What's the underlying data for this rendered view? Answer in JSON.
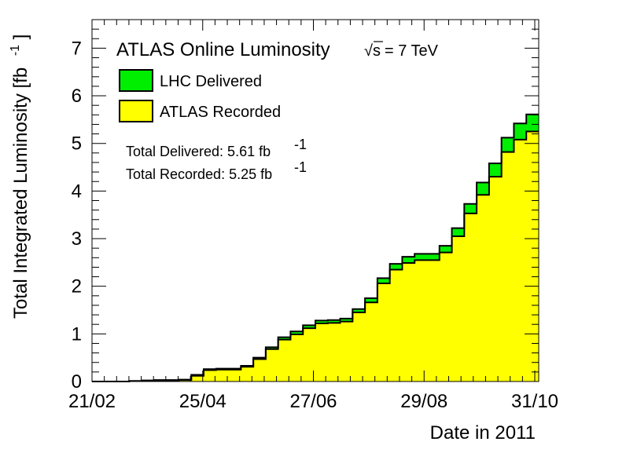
{
  "chart_data": {
    "type": "area",
    "xlabel": "Date in 2011",
    "ylabel": "Total Integrated Luminosity [fb",
    "ylabel_sup": "-1",
    "ylabel_close": "]",
    "xlim": [
      0,
      35
    ],
    "ylim": [
      0,
      7.6
    ],
    "x_ticks": [
      {
        "x": 0,
        "label": "21/02"
      },
      {
        "x": 9,
        "label": "25/04"
      },
      {
        "x": 18,
        "label": "27/06"
      },
      {
        "x": 27,
        "label": "29/08"
      },
      {
        "x": 36,
        "label": "31/10"
      }
    ],
    "y_ticks": [
      {
        "y": 0,
        "label": "0"
      },
      {
        "y": 1,
        "label": "1"
      },
      {
        "y": 2,
        "label": "2"
      },
      {
        "y": 3,
        "label": "3"
      },
      {
        "y": 4,
        "label": "4"
      },
      {
        "y": 5,
        "label": "5"
      },
      {
        "y": 6,
        "label": "6"
      },
      {
        "y": 7,
        "label": "7"
      }
    ],
    "series": [
      {
        "name": "LHC Delivered",
        "color": "#00ee00",
        "values": [
          0,
          0,
          0,
          0.01,
          0.02,
          0.03,
          0.03,
          0.04,
          0.14,
          0.26,
          0.27,
          0.27,
          0.33,
          0.5,
          0.72,
          0.93,
          1.05,
          1.18,
          1.28,
          1.29,
          1.32,
          1.52,
          1.75,
          2.17,
          2.47,
          2.62,
          2.68,
          2.68,
          2.85,
          3.22,
          3.73,
          4.18,
          4.58,
          5.12,
          5.42,
          5.61
        ]
      },
      {
        "name": "ATLAS Recorded",
        "color": "#ffff00",
        "values": [
          0,
          0,
          0,
          0.01,
          0.02,
          0.02,
          0.02,
          0.03,
          0.12,
          0.24,
          0.25,
          0.25,
          0.31,
          0.47,
          0.68,
          0.88,
          0.99,
          1.12,
          1.22,
          1.23,
          1.26,
          1.45,
          1.66,
          2.06,
          2.35,
          2.49,
          2.55,
          2.55,
          2.71,
          3.05,
          3.53,
          3.92,
          4.3,
          4.82,
          5.08,
          5.25
        ]
      }
    ],
    "legend": {
      "title": "ATLAS Online Luminosity",
      "energy_sqrt": "√s",
      "energy_text": "= 7 TeV",
      "placement": "top-left"
    },
    "annotations": {
      "delivered_text": "Total Delivered: 5.61 fb",
      "recorded_text": "Total Recorded: 5.25 fb",
      "unit_sup": "-1"
    },
    "grid": false
  }
}
